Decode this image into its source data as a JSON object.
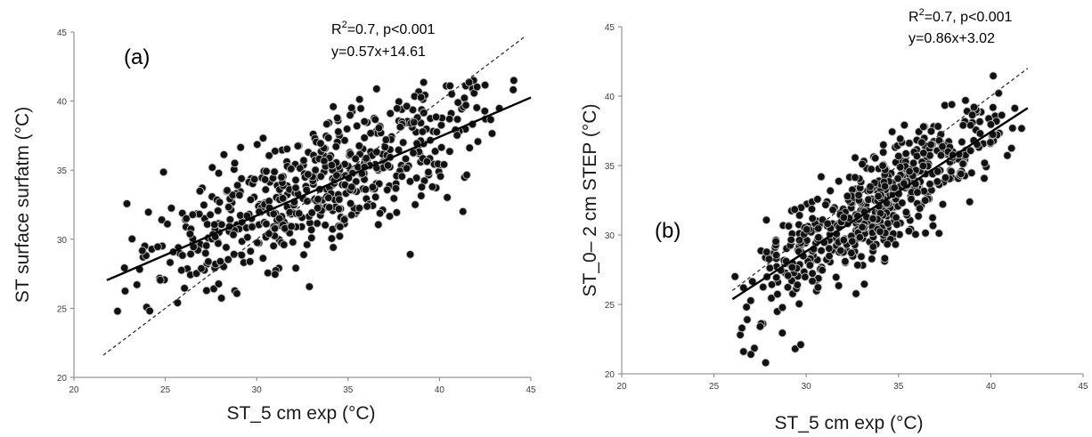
{
  "chart_data": [
    {
      "type": "scatter",
      "panel_label": "(a)",
      "xlabel": "ST_5 cm exp (°C)",
      "ylabel": "ST surface surfatm (°C)",
      "xlim": [
        20,
        45
      ],
      "ylim": [
        20,
        45
      ],
      "xticks": [
        "20",
        "25",
        "30",
        "35",
        "40",
        "45"
      ],
      "yticks": [
        "20",
        "25",
        "30",
        "35",
        "40",
        "45"
      ],
      "stats": {
        "r2_prefix": "R",
        "r2_sup": "2",
        "r2_rest": "=0.7, p<0.001",
        "equation": "y=0.57x+14.61"
      },
      "fit": {
        "slope": 0.57,
        "intercept": 14.61,
        "x_range": [
          21.8,
          45
        ]
      },
      "one_to_one": {
        "x_range": [
          21.6,
          44.7
        ]
      },
      "outliers": [
        [
          38.4,
          28.9
        ]
      ],
      "point_generation": {
        "n": 560,
        "seed": 11,
        "x_min": 22,
        "x_max": 45,
        "noise": 2.3
      },
      "grid": false,
      "marker_color": "#111111",
      "marker_edge": "#bdbdbd"
    },
    {
      "type": "scatter",
      "panel_label": "(b)",
      "xlabel": "ST_5 cm exp (°C)",
      "ylabel": "ST_0– 2 cm STEP (°C)",
      "xlim": [
        20,
        45
      ],
      "ylim": [
        20,
        45
      ],
      "xticks": [
        "20",
        "25",
        "30",
        "35",
        "40",
        "45"
      ],
      "yticks": [
        "20",
        "25",
        "30",
        "35",
        "40",
        "45"
      ],
      "stats": {
        "r2_prefix": "R",
        "r2_sup": "2",
        "r2_rest": "=0.7, p<0.001",
        "equation": "y=0.86x+3.02"
      },
      "fit": {
        "slope": 0.86,
        "intercept": 3.02,
        "x_range": [
          26.0,
          42.0
        ]
      },
      "one_to_one": {
        "x_range": [
          26.0,
          42.0
        ]
      },
      "outliers": [
        [
          26.6,
          21.6
        ],
        [
          27.0,
          21.4
        ],
        [
          27.8,
          20.8
        ],
        [
          29.4,
          21.8
        ],
        [
          29.7,
          22.1
        ],
        [
          26.8,
          23.9
        ],
        [
          27.5,
          23.4
        ]
      ],
      "point_generation": {
        "n": 560,
        "seed": 29,
        "x_min": 26,
        "x_max": 42,
        "noise": 1.9
      },
      "grid": false,
      "marker_color": "#111111",
      "marker_edge": "#bdbdbd"
    }
  ]
}
